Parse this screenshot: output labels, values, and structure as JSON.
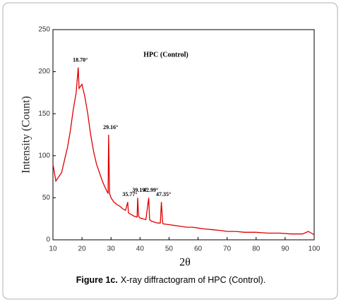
{
  "chart_data": {
    "type": "line",
    "title": "HPC (Control)",
    "xlabel": "2θ",
    "ylabel": "Intensity (Count)",
    "caption_label": "Figure 1c.",
    "caption_text": "X-ray diffractogram of HPC (Control).",
    "x": [
      10,
      11,
      12,
      13,
      14,
      15,
      16,
      17,
      18,
      18.7,
      19,
      20,
      21,
      22,
      23,
      24,
      25,
      26,
      27,
      28,
      29,
      29.16,
      29.5,
      30,
      31,
      32,
      33,
      34,
      35,
      35.77,
      36,
      37,
      38,
      39,
      39.19,
      39.5,
      40,
      41,
      42,
      42.99,
      43.3,
      44,
      45,
      46,
      47,
      47.35,
      47.8,
      48,
      50,
      52,
      54,
      56,
      58,
      60,
      62,
      65,
      68,
      70,
      73,
      76,
      80,
      84,
      88,
      92,
      96,
      98,
      99,
      100
    ],
    "series": [
      {
        "name": "HPC (Control)",
        "color": "#e00000",
        "values": [
          90,
          70,
          75,
          80,
          95,
          110,
          130,
          155,
          175,
          205,
          180,
          185,
          170,
          150,
          125,
          105,
          90,
          80,
          70,
          62,
          55,
          125,
          55,
          50,
          45,
          42,
          40,
          37,
          35,
          45,
          32,
          30,
          28,
          27,
          50,
          28,
          26,
          25,
          24,
          50,
          24,
          22,
          21,
          20,
          20,
          45,
          20,
          19,
          18,
          17,
          16,
          15,
          15,
          14,
          13,
          12,
          11,
          10,
          10,
          9,
          9,
          8,
          8,
          7,
          7,
          10,
          8,
          6
        ]
      }
    ],
    "annotations": [
      {
        "text": "18.70°",
        "x": 18.7,
        "y": 205
      },
      {
        "text": "29.16°",
        "x": 29.16,
        "y": 125
      },
      {
        "text": "35.77°",
        "x": 35.77,
        "y": 45
      },
      {
        "text": "39.19°",
        "x": 39.19,
        "y": 50
      },
      {
        "text": "42.99°",
        "x": 42.99,
        "y": 50
      },
      {
        "text": "47.35°",
        "x": 47.35,
        "y": 45
      }
    ],
    "xlim": [
      10,
      100
    ],
    "ylim": [
      0,
      250
    ],
    "xticks": [
      10,
      20,
      30,
      40,
      50,
      60,
      70,
      80,
      90,
      100
    ],
    "yticks": [
      0,
      50,
      100,
      150,
      200,
      250
    ]
  }
}
